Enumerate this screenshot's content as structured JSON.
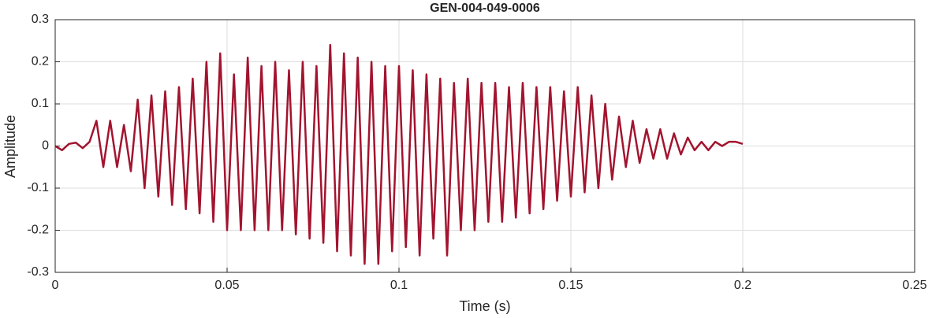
{
  "chart_data": {
    "type": "line",
    "title": "GEN-004-049-0006",
    "x_label": "Time (s)",
    "y_label": "Amplitude",
    "x": [
      0,
      0.002,
      0.004,
      0.006,
      0.008,
      0.01,
      0.012,
      0.014,
      0.016,
      0.018,
      0.02,
      0.022,
      0.024,
      0.026,
      0.028,
      0.03,
      0.032,
      0.034,
      0.036,
      0.038,
      0.04,
      0.042,
      0.044,
      0.046,
      0.048,
      0.05,
      0.052,
      0.054,
      0.056,
      0.058,
      0.06,
      0.062,
      0.064,
      0.066,
      0.068,
      0.07,
      0.072,
      0.074,
      0.076,
      0.078,
      0.08,
      0.082,
      0.084,
      0.086,
      0.088,
      0.09,
      0.092,
      0.094,
      0.096,
      0.098,
      0.1,
      0.102,
      0.104,
      0.106,
      0.108,
      0.11,
      0.112,
      0.114,
      0.116,
      0.118,
      0.12,
      0.122,
      0.124,
      0.126,
      0.128,
      0.13,
      0.132,
      0.134,
      0.136,
      0.138,
      0.14,
      0.142,
      0.144,
      0.146,
      0.148,
      0.15,
      0.152,
      0.154,
      0.156,
      0.158,
      0.16,
      0.162,
      0.164,
      0.166,
      0.168,
      0.17,
      0.172,
      0.174,
      0.176,
      0.178,
      0.18,
      0.182,
      0.184,
      0.186,
      0.188,
      0.19,
      0.192,
      0.194,
      0.196,
      0.198,
      0.2
    ],
    "series": [
      {
        "color": "#a2142f",
        "values": [
          0,
          -0.01,
          0.005,
          0.008,
          -0.005,
          0.01,
          0.06,
          -0.05,
          0.06,
          -0.05,
          0.05,
          -0.06,
          0.11,
          -0.1,
          0.12,
          -0.12,
          0.13,
          -0.14,
          0.14,
          -0.15,
          0.16,
          -0.16,
          0.2,
          -0.18,
          0.22,
          -0.2,
          0.17,
          -0.2,
          0.21,
          -0.2,
          0.19,
          -0.2,
          0.2,
          -0.2,
          0.18,
          -0.21,
          0.2,
          -0.22,
          0.19,
          -0.23,
          0.24,
          -0.25,
          0.22,
          -0.26,
          0.21,
          -0.28,
          0.2,
          -0.28,
          0.19,
          -0.25,
          0.19,
          -0.24,
          0.18,
          -0.26,
          0.17,
          -0.22,
          0.16,
          -0.26,
          0.15,
          -0.2,
          0.16,
          -0.2,
          0.15,
          -0.18,
          0.15,
          -0.18,
          0.14,
          -0.17,
          0.15,
          -0.16,
          0.14,
          -0.15,
          0.14,
          -0.13,
          0.13,
          -0.12,
          0.14,
          -0.11,
          0.12,
          -0.1,
          0.1,
          -0.08,
          0.07,
          -0.05,
          0.06,
          -0.04,
          0.04,
          -0.03,
          0.04,
          -0.03,
          0.03,
          -0.02,
          0.02,
          -0.01,
          0.01,
          -0.01,
          0.01,
          0,
          0.01,
          0.01,
          0.005
        ]
      }
    ],
    "xlim": [
      0,
      0.25
    ],
    "xticks": [
      0,
      0.05,
      0.1,
      0.15,
      0.2,
      0.25
    ],
    "ylim": [
      -0.3,
      0.3
    ],
    "yticks": [
      -0.3,
      -0.2,
      -0.1,
      0,
      0.1,
      0.2,
      0.3
    ],
    "grid": true
  }
}
